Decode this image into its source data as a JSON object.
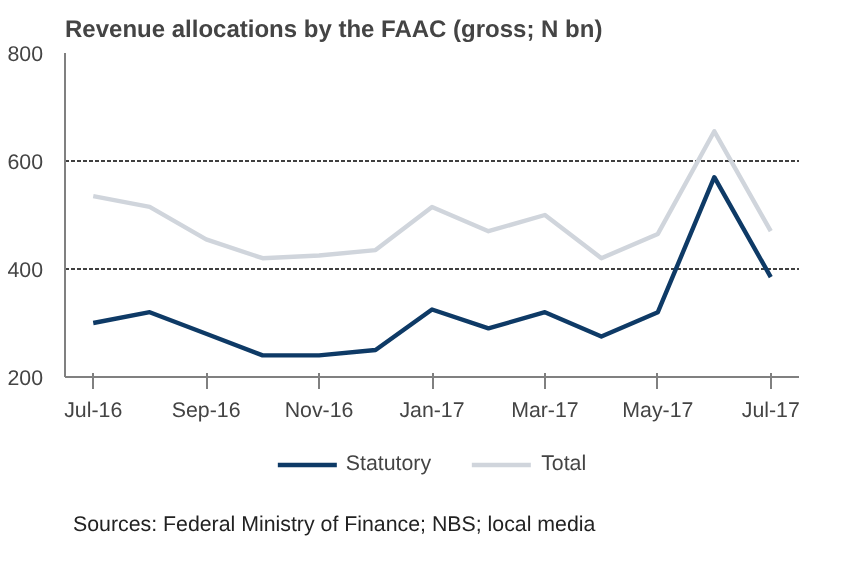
{
  "chart_data": {
    "type": "line",
    "title": "Revenue allocations by the FAAC (gross; N bn)",
    "categories": [
      "Jul-16",
      null,
      "Sep-16",
      null,
      "Nov-16",
      null,
      "Jan-17",
      null,
      "Mar-17",
      null,
      "May-17",
      null,
      "Jul-17"
    ],
    "series": [
      {
        "name": "Statutory",
        "color": "#0e3a66",
        "values": [
          300,
          320,
          280,
          240,
          240,
          250,
          325,
          290,
          320,
          275,
          320,
          570,
          385
        ]
      },
      {
        "name": "Total",
        "color": "#d0d5dc",
        "values": [
          535,
          515,
          455,
          420,
          425,
          435,
          515,
          470,
          500,
          420,
          465,
          655,
          470
        ]
      }
    ],
    "ylim": [
      200,
      800
    ],
    "yticks": [
      200,
      400,
      600,
      800
    ],
    "grid": "y",
    "legend": "bottom",
    "marker": "none",
    "line_style": "solid",
    "annotations": [
      "Sources: Federal Ministry of Finance; NBS; local media"
    ]
  }
}
